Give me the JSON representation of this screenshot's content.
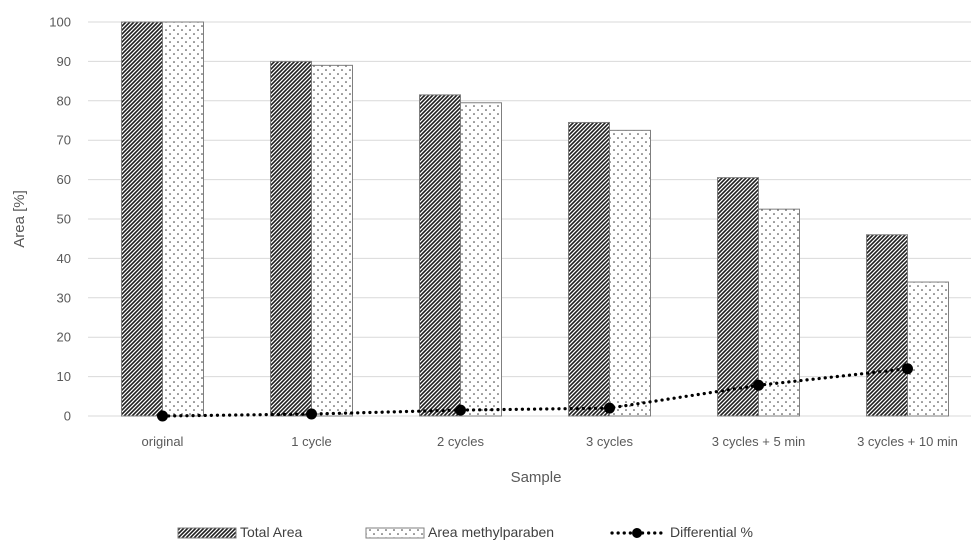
{
  "chart_data": {
    "type": "bar",
    "title": "",
    "xlabel": "Sample",
    "ylabel": "Area [%]",
    "ylim": [
      0,
      100
    ],
    "yticks": [
      0,
      10,
      20,
      30,
      40,
      50,
      60,
      70,
      80,
      90,
      100
    ],
    "grid": true,
    "legend_position": "bottom",
    "categories": [
      "original",
      "1 cycle",
      "2 cycles",
      "3 cycles",
      "3 cycles  + 5 min",
      "3 cycles + 10 min"
    ],
    "series": [
      {
        "name": "Total Area",
        "kind": "bar",
        "pattern": "dense-diagonal-hatch",
        "values": [
          100,
          90,
          81.5,
          74.5,
          60.5,
          46
        ]
      },
      {
        "name": "Area methylparaben",
        "kind": "bar",
        "pattern": "sparse-dots",
        "values": [
          100,
          89,
          79.5,
          72.5,
          52.5,
          34
        ]
      },
      {
        "name": "Differential %",
        "kind": "line",
        "style": "dotted-with-markers",
        "values": [
          0,
          0.5,
          1.5,
          2,
          7.8,
          12
        ]
      }
    ]
  }
}
